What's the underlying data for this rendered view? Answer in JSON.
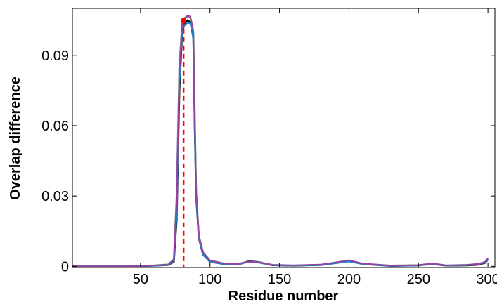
{
  "chart_data": {
    "type": "line",
    "title": "",
    "xlabel": "Residue number",
    "ylabel": "Overlap difference",
    "xlim": [
      1,
      305
    ],
    "ylim": [
      -0.0005,
      0.11
    ],
    "xticks": [
      50,
      100,
      150,
      200,
      250,
      300
    ],
    "yticks": [
      0,
      0.03,
      0.06,
      0.09
    ],
    "ytick_labels": [
      "0",
      "0.03",
      "0.06",
      "0.09"
    ],
    "grid": false,
    "colors": {
      "series": [
        "#111111",
        "#7f7f7f",
        "#1f7fd0",
        "#9b3fa3"
      ],
      "marker_line": "#ff0000"
    },
    "series": [
      {
        "values": [
          [
            1,
            0
          ],
          [
            40,
            0
          ],
          [
            60,
            0.0003
          ],
          [
            70,
            0.0006
          ],
          [
            74,
            0.002
          ],
          [
            76,
            0.02
          ],
          [
            78,
            0.075
          ],
          [
            80,
            0.1
          ],
          [
            82,
            0.104
          ],
          [
            84,
            0.105
          ],
          [
            86,
            0.104
          ],
          [
            88,
            0.098
          ],
          [
            89,
            0.06
          ],
          [
            90,
            0.03
          ],
          [
            92,
            0.012
          ],
          [
            95,
            0.005
          ],
          [
            100,
            0.002
          ],
          [
            110,
            0.001
          ],
          [
            120,
            0.0008
          ],
          [
            128,
            0.0022
          ],
          [
            135,
            0.0018
          ],
          [
            145,
            0.0005
          ],
          [
            160,
            0.0003
          ],
          [
            180,
            0.0006
          ],
          [
            200,
            0.0022
          ],
          [
            210,
            0.001
          ],
          [
            230,
            0.0002
          ],
          [
            250,
            0.0004
          ],
          [
            260,
            0.001
          ],
          [
            270,
            0.0003
          ],
          [
            285,
            0.0004
          ],
          [
            293,
            0.0007
          ],
          [
            298,
            0.0015
          ],
          [
            300,
            0.003
          ]
        ]
      },
      {
        "values": [
          [
            1,
            0
          ],
          [
            40,
            0
          ],
          [
            60,
            0.0004
          ],
          [
            70,
            0.0008
          ],
          [
            74,
            0.003
          ],
          [
            76,
            0.03
          ],
          [
            78,
            0.085
          ],
          [
            80,
            0.104
          ],
          [
            82,
            0.106
          ],
          [
            84,
            0.1065
          ],
          [
            86,
            0.106
          ],
          [
            88,
            0.1
          ],
          [
            89,
            0.065
          ],
          [
            90,
            0.032
          ],
          [
            92,
            0.013
          ],
          [
            95,
            0.006
          ],
          [
            100,
            0.0025
          ],
          [
            110,
            0.0012
          ],
          [
            120,
            0.001
          ],
          [
            128,
            0.002
          ],
          [
            135,
            0.0017
          ],
          [
            145,
            0.0006
          ],
          [
            160,
            0.0004
          ],
          [
            180,
            0.0007
          ],
          [
            200,
            0.0024
          ],
          [
            210,
            0.0011
          ],
          [
            230,
            0.0003
          ],
          [
            250,
            0.0005
          ],
          [
            260,
            0.0012
          ],
          [
            270,
            0.0004
          ],
          [
            285,
            0.0006
          ],
          [
            293,
            0.001
          ],
          [
            298,
            0.0018
          ],
          [
            300,
            0.0033
          ]
        ]
      },
      {
        "values": [
          [
            1,
            0
          ],
          [
            40,
            0
          ],
          [
            60,
            0.0003
          ],
          [
            70,
            0.0006
          ],
          [
            74,
            0.0025
          ],
          [
            76,
            0.022
          ],
          [
            78,
            0.078
          ],
          [
            80,
            0.101
          ],
          [
            82,
            0.103
          ],
          [
            84,
            0.104
          ],
          [
            86,
            0.1035
          ],
          [
            88,
            0.097
          ],
          [
            89,
            0.06
          ],
          [
            90,
            0.03
          ],
          [
            92,
            0.012
          ],
          [
            95,
            0.005
          ],
          [
            100,
            0.002
          ],
          [
            110,
            0.001
          ],
          [
            120,
            0.0009
          ],
          [
            128,
            0.0019
          ],
          [
            135,
            0.0016
          ],
          [
            145,
            0.0005
          ],
          [
            160,
            0.0003
          ],
          [
            180,
            0.0006
          ],
          [
            200,
            0.0021
          ],
          [
            210,
            0.001
          ],
          [
            230,
            0.0002
          ],
          [
            250,
            0.0004
          ],
          [
            260,
            0.001
          ],
          [
            270,
            0.0003
          ],
          [
            285,
            0.0005
          ],
          [
            293,
            0.0009
          ],
          [
            298,
            0.0017
          ],
          [
            300,
            0.003
          ]
        ]
      },
      {
        "values": [
          [
            1,
            0
          ],
          [
            40,
            0
          ],
          [
            60,
            0.0004
          ],
          [
            70,
            0.0007
          ],
          [
            74,
            0.003
          ],
          [
            76,
            0.028
          ],
          [
            78,
            0.083
          ],
          [
            80,
            0.103
          ],
          [
            82,
            0.106
          ],
          [
            84,
            0.107
          ],
          [
            86,
            0.1065
          ],
          [
            88,
            0.1005
          ],
          [
            89,
            0.064
          ],
          [
            90,
            0.032
          ],
          [
            92,
            0.013
          ],
          [
            95,
            0.006
          ],
          [
            100,
            0.0025
          ],
          [
            110,
            0.0012
          ],
          [
            120,
            0.001
          ],
          [
            128,
            0.0021
          ],
          [
            135,
            0.0017
          ],
          [
            145,
            0.0006
          ],
          [
            160,
            0.0004
          ],
          [
            180,
            0.0008
          ],
          [
            200,
            0.0026
          ],
          [
            210,
            0.0012
          ],
          [
            230,
            0.0003
          ],
          [
            250,
            0.0005
          ],
          [
            260,
            0.0012
          ],
          [
            270,
            0.0004
          ],
          [
            285,
            0.0006
          ],
          [
            293,
            0.001
          ],
          [
            298,
            0.002
          ],
          [
            300,
            0.0035
          ]
        ]
      }
    ],
    "annotations": [
      {
        "type": "vertical-dashed-line",
        "x": 81,
        "y_top": 0.105,
        "color": "#ff0000"
      },
      {
        "type": "marker",
        "x": 81,
        "y": 0.1048,
        "color": "#ff0000"
      }
    ]
  }
}
